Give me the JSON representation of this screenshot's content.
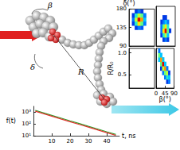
{
  "diagram": {
    "labels": [
      "β",
      "δ",
      "R"
    ]
  },
  "chart_data": [
    {
      "type": "line",
      "log": "y",
      "xlabel": "t, ns",
      "ylabel": "f(t)",
      "xlim": [
        0,
        47
      ],
      "xticks": [
        10,
        20,
        30,
        40
      ],
      "ylim": [
        10,
        3000
      ],
      "yticks": [
        {
          "value": 10,
          "label": "10¹"
        },
        {
          "value": 100,
          "label": "10²"
        },
        {
          "value": 1000,
          "label": "10³"
        }
      ],
      "x": [
        1,
        5,
        10,
        15,
        20,
        25,
        30,
        35,
        40,
        45
      ],
      "series": [
        {
          "color": "#2ca02c",
          "values": [
            1380,
            900,
            525,
            307,
            180,
            107,
            62,
            37,
            21.5,
            12.7
          ]
        },
        {
          "color": "#e0302a",
          "values": [
            1170,
            760,
            445,
            260,
            153,
            90,
            53,
            31,
            18,
            10.8
          ]
        }
      ]
    },
    {
      "type": "heatmap",
      "ylabel": "δ(°)",
      "xlim": [
        0,
        90
      ],
      "ylim": [
        90,
        180
      ],
      "yticks": [
        90,
        135,
        180
      ],
      "tick_labels": "y",
      "vlim": [
        0,
        1
      ],
      "xbins": [
        0,
        10,
        20,
        30,
        40,
        50,
        60,
        70,
        80,
        90
      ],
      "ybins": [
        90,
        100,
        110,
        120,
        130,
        140,
        150,
        160,
        170,
        180
      ],
      "z": [
        [
          0,
          0,
          0,
          0,
          0,
          0,
          0,
          0,
          0
        ],
        [
          0,
          0,
          0,
          0,
          0,
          0,
          0,
          0,
          0
        ],
        [
          0,
          0,
          0,
          0,
          0,
          0,
          0,
          0,
          0
        ],
        [
          0,
          0,
          0,
          0,
          0,
          0,
          0,
          0,
          0
        ],
        [
          0,
          0,
          0.1,
          0.2,
          0.15,
          0,
          0,
          0,
          0
        ],
        [
          0,
          0.1,
          0.4,
          0.7,
          0.5,
          0.2,
          0,
          0,
          0
        ],
        [
          0,
          0.2,
          0.6,
          1,
          0.8,
          0.3,
          0,
          0,
          0
        ],
        [
          0,
          0.1,
          0.4,
          0.6,
          0.5,
          0.2,
          0,
          0,
          0
        ],
        [
          0,
          0,
          0.1,
          0.2,
          0.1,
          0,
          0,
          0,
          0
        ]
      ]
    },
    {
      "type": "heatmap",
      "xlim": [
        0,
        90
      ],
      "ylim": [
        90,
        180
      ],
      "tick_labels": false,
      "vlim": [
        0,
        1
      ],
      "xbins": [
        0,
        10,
        20,
        30,
        40,
        50,
        60,
        70,
        80,
        90
      ],
      "ybins": [
        90,
        100,
        110,
        120,
        130,
        140,
        150,
        160,
        170,
        180
      ],
      "z": [
        [
          0,
          0,
          0,
          0,
          0,
          0,
          0,
          0,
          0
        ],
        [
          0,
          0,
          0,
          0.1,
          0.2,
          0.1,
          0,
          0,
          0
        ],
        [
          0,
          0,
          0.1,
          0.4,
          0.6,
          0.3,
          0,
          0,
          0
        ],
        [
          0,
          0,
          0.2,
          0.7,
          1,
          0.5,
          0.1,
          0,
          0
        ],
        [
          0,
          0,
          0.2,
          0.5,
          0.7,
          0.4,
          0,
          0,
          0
        ],
        [
          0,
          0,
          0.1,
          0.2,
          0.3,
          0.2,
          0,
          0,
          0
        ],
        [
          0,
          0,
          0,
          0.1,
          0.1,
          0,
          0,
          0,
          0
        ],
        [
          0,
          0,
          0,
          0,
          0,
          0,
          0,
          0,
          0
        ],
        [
          0,
          0,
          0,
          0,
          0,
          0,
          0,
          0,
          0
        ]
      ]
    },
    {
      "type": "heatmap",
      "ylabel": "R/R₀",
      "xlim": [
        0,
        90
      ],
      "ylim": [
        0.2,
        1.1
      ],
      "yticks": [
        0.5,
        {
          "value": 1,
          "label": "1.0"
        }
      ],
      "tick_labels": "y"
    },
    {
      "type": "heatmap",
      "xlabel": "β(°)",
      "xlim": [
        0,
        90
      ],
      "ylim": [
        0.2,
        1.1
      ],
      "xticks": [
        0,
        45,
        90
      ],
      "tick_labels": "x",
      "vlim": [
        0,
        1
      ],
      "xbins": [
        0,
        10,
        20,
        30,
        40,
        50,
        60,
        70,
        80,
        90
      ],
      "ybins": [
        0.2,
        0.3,
        0.4,
        0.5,
        0.6,
        0.7,
        0.8,
        0.9,
        1.0,
        1.1
      ],
      "z": [
        [
          0,
          0,
          0,
          0,
          0,
          0,
          0,
          0,
          0
        ],
        [
          0,
          0,
          0,
          0,
          0,
          0.1,
          0.2,
          0,
          0
        ],
        [
          0,
          0,
          0,
          0,
          0.2,
          0.4,
          0.3,
          0,
          0
        ],
        [
          0,
          0,
          0,
          0.2,
          0.5,
          0.6,
          0.1,
          0,
          0
        ],
        [
          0,
          0,
          0.1,
          0.6,
          0.8,
          0.2,
          0,
          0,
          0
        ],
        [
          0,
          0,
          0.5,
          1,
          0.3,
          0,
          0,
          0,
          0
        ],
        [
          0,
          0.3,
          0.8,
          0.3,
          0,
          0,
          0,
          0,
          0
        ],
        [
          0,
          0.5,
          0.3,
          0,
          0,
          0,
          0,
          0,
          0
        ],
        [
          0,
          0.2,
          0,
          0,
          0,
          0,
          0,
          0,
          0
        ]
      ]
    }
  ]
}
